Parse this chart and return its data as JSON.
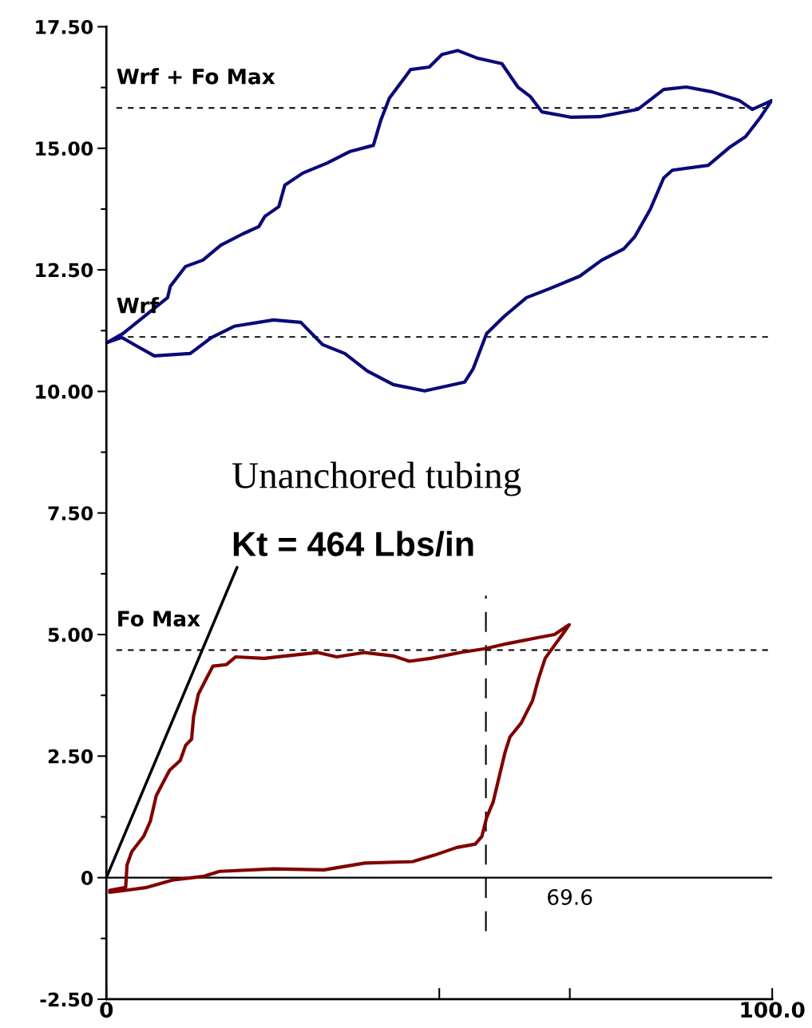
{
  "chart_data": {
    "type": "line",
    "xlim": [
      0,
      100
    ],
    "ylim": [
      -2.5,
      17.5
    ],
    "xticks": [
      0,
      {
        "value": 50,
        "label": null
      },
      {
        "value": 69.6,
        "label": null
      },
      {
        "value": 100,
        "label": "100.0"
      }
    ],
    "yticks": [
      {
        "value": -2.5,
        "label": "-2.50"
      },
      0,
      {
        "value": 2.5,
        "label": "2.50"
      },
      {
        "value": 5,
        "label": "5.00"
      },
      {
        "value": 7.5,
        "label": "7.50"
      },
      {
        "value": 10,
        "label": "10.00"
      },
      {
        "value": 12.5,
        "label": "12.50"
      },
      {
        "value": 15,
        "label": "15.00"
      },
      {
        "value": 17.5,
        "label": "17.50"
      }
    ],
    "grid": false,
    "legend": false,
    "marker": "none",
    "line_style": "solid",
    "series": [
      {
        "color": "#0a0a78",
        "x": [
          0.2,
          2.5,
          9.2,
          9.6,
          11.9,
          14.5,
          17.2,
          20.5,
          22.9,
          23.8,
          25.9,
          26.8,
          29.5,
          33.2,
          36.5,
          40.1,
          41.2,
          42.5,
          45.7,
          48.5,
          50.4,
          52.8,
          55.8,
          59.4,
          61.8,
          63.7,
          65.4,
          69.7,
          74.1,
          79.8,
          83.7,
          87.1,
          91.0,
          95.1,
          97.0,
          99.9
        ],
        "values": [
          11.01,
          11.19,
          11.93,
          12.16,
          12.57,
          12.7,
          13.01,
          13.24,
          13.39,
          13.6,
          13.8,
          14.24,
          14.49,
          14.7,
          14.93,
          15.06,
          15.57,
          16.03,
          16.62,
          16.67,
          16.93,
          17.01,
          16.85,
          16.74,
          16.26,
          16.06,
          15.75,
          15.64,
          15.65,
          15.8,
          16.21,
          16.26,
          16.16,
          15.98,
          15.8,
          15.98
        ]
      },
      {
        "color": "#0a0a78",
        "x": [
          0.2,
          2.3,
          4.6,
          7.2,
          12.6,
          15.8,
          19.2,
          25.1,
          29.2,
          32.5,
          35.8,
          39.2,
          43.1,
          47.8,
          51.1,
          53.8,
          55.1,
          57.1,
          59.8,
          63.1,
          66.5,
          71.1,
          74.4,
          77.7,
          79.4,
          81.7,
          83.7,
          85.0,
          90.4,
          93.7,
          96.0,
          98.3,
          99.9
        ],
        "values": [
          11.01,
          11.11,
          10.93,
          10.73,
          10.78,
          11.11,
          11.34,
          11.47,
          11.42,
          10.96,
          10.78,
          10.42,
          10.14,
          10.01,
          10.11,
          10.19,
          10.47,
          11.19,
          11.55,
          11.93,
          12.11,
          12.37,
          12.7,
          12.93,
          13.19,
          13.75,
          14.39,
          14.55,
          14.65,
          15.03,
          15.24,
          15.65,
          15.98
        ]
      },
      {
        "color": "#800000",
        "x": [
          0.5,
          2.9,
          3.1,
          3.8,
          5.6,
          6.6,
          7.5,
          8.5,
          9.5,
          11.1,
          11.9,
          12.8,
          13.1,
          13.8,
          15.0,
          16.0,
          18.0,
          19.4,
          23.7,
          26.9,
          31.7,
          34.6,
          38.8,
          43.1,
          45.5,
          48.7,
          53.5,
          56.9,
          60.1,
          64.9,
          67.3,
          69.5
        ],
        "values": [
          -0.26,
          -0.2,
          0.26,
          0.53,
          0.85,
          1.16,
          1.69,
          1.95,
          2.21,
          2.41,
          2.72,
          2.85,
          3.31,
          3.77,
          4.09,
          4.35,
          4.38,
          4.54,
          4.51,
          4.56,
          4.63,
          4.54,
          4.63,
          4.56,
          4.45,
          4.51,
          4.64,
          4.71,
          4.81,
          4.94,
          5.0,
          5.2
        ]
      },
      {
        "color": "#800000",
        "x": [
          0.5,
          2.9,
          6.1,
          9.9,
          14.7,
          17.0,
          25.1,
          32.7,
          38.8,
          46.0,
          49.2,
          52.6,
          55.4,
          56.4,
          57.1,
          58.1,
          59.0,
          59.9,
          60.6,
          62.3,
          64.0,
          64.9,
          65.9,
          67.1,
          68.7,
          69.5
        ],
        "values": [
          -0.3,
          -0.26,
          -0.2,
          -0.05,
          0.03,
          0.13,
          0.18,
          0.16,
          0.3,
          0.33,
          0.46,
          0.62,
          0.69,
          0.85,
          1.23,
          1.56,
          2.08,
          2.59,
          2.89,
          3.18,
          3.64,
          4.09,
          4.51,
          4.74,
          5.04,
          5.2
        ]
      }
    ],
    "ref_lines": [
      {
        "axis": "y",
        "value": 15.83,
        "label": "Wrf + Fo Max",
        "color": "#000000",
        "line_style": "dashed"
      },
      {
        "axis": "y",
        "value": 11.12,
        "label": "Wrf",
        "color": "#000000",
        "line_style": "dashed"
      },
      {
        "axis": "y",
        "value": 4.68,
        "label": "Fo Max",
        "color": "#000000",
        "line_style": "dashed"
      },
      {
        "axis": "y",
        "value": 0,
        "color": "#000000",
        "line_style": "solid"
      },
      {
        "axis": "x",
        "value": 57.0,
        "color": "#000000",
        "line_style": "dashed"
      }
    ],
    "annotations": [
      "Unanchored tubing",
      {
        "text": "Kt = 464 Lbs/in",
        "x": 0,
        "y": 0
      },
      {
        "text": "69.6",
        "x": 69.6,
        "y": 0
      }
    ]
  }
}
